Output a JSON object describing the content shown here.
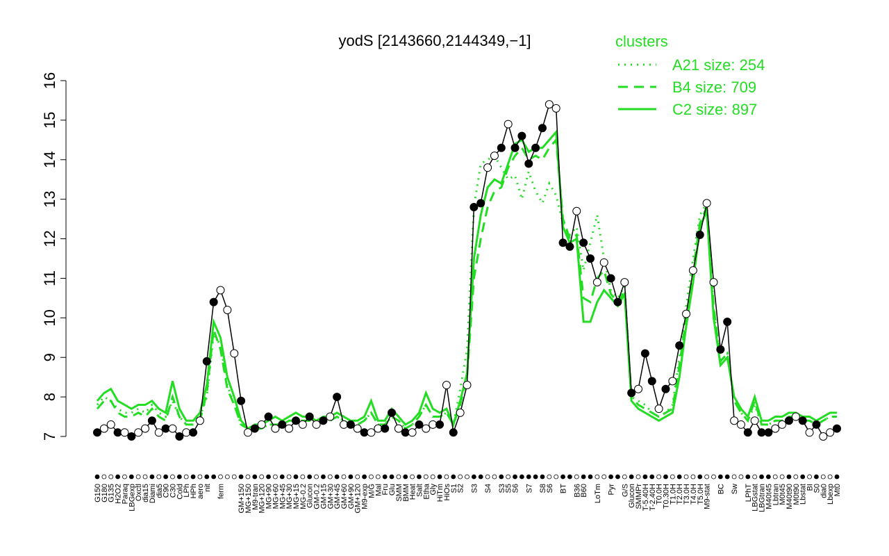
{
  "chart_data": {
    "type": "line",
    "title": "yodS [2143660,2144349,−1]",
    "legend_title": "clusters",
    "ylim": [
      7,
      16
    ],
    "yticks": [
      7,
      8,
      9,
      10,
      11,
      12,
      13,
      14,
      15,
      16
    ],
    "categories": [
      "G150",
      "G180",
      "G135",
      "H2O2",
      "Paraq",
      "LBGexp",
      "Oxctl",
      "dia15",
      "Diami",
      "dia5",
      "C90",
      "C30",
      "Cold",
      "LPh",
      "HPh",
      "aero",
      "nit",
      null,
      "ferm",
      null,
      null,
      "GM+150",
      "MG+150",
      "M9-tran",
      "MG+120",
      "MG+90",
      "MG+60",
      "MG+45",
      "MG+30",
      "MG+15",
      "MG-0.2",
      "Glucon",
      "GM-0.2",
      "GM+15",
      "GM+30",
      "GM+45",
      "GM+60",
      "GM+90",
      "GM+120",
      "M9-exp",
      "M/G",
      "Mal",
      "Fru",
      "Glu",
      "SMM",
      "BMM",
      "Heat",
      "Salt",
      "Etha",
      "Gly",
      "HiTm",
      "HiOs",
      "S1",
      "S2",
      null,
      "S3",
      null,
      "S4",
      null,
      "S3",
      "S5",
      "S6",
      null,
      "S7",
      null,
      "S8",
      "S6",
      null,
      "BT",
      null,
      "B36",
      "B60",
      null,
      "LoTm",
      null,
      "Pyr",
      null,
      "G/S",
      "Glucon",
      "SMMPr",
      "T-5.40H",
      "T-2.40H",
      "T0.0H",
      "T0.30H",
      "T1.0H",
      "T2.0H",
      "T3.0H",
      "T4.0H",
      "T5.0H",
      "M9-stat",
      null,
      "BC",
      null,
      "Sw",
      null,
      "LPhT",
      "LBGstat",
      "LBGtran",
      "M40t45",
      "Lbtran",
      "M0t45",
      "M40t90",
      "M0t90",
      "Lbstat",
      "BI",
      "S0",
      "dia0",
      "Lbexp",
      "Mt0"
    ],
    "values": [
      7.1,
      7.2,
      7.3,
      7.1,
      7.1,
      7.0,
      7.1,
      7.2,
      7.4,
      7.1,
      7.2,
      7.2,
      7.0,
      7.1,
      7.1,
      7.4,
      8.9,
      10.4,
      10.7,
      10.2,
      9.1,
      7.9,
      7.1,
      7.2,
      7.3,
      7.5,
      7.2,
      7.3,
      7.2,
      7.4,
      7.3,
      7.5,
      7.3,
      7.4,
      7.5,
      8.0,
      7.3,
      7.3,
      7.2,
      7.1,
      7.1,
      7.2,
      7.2,
      7.6,
      7.2,
      7.1,
      7.1,
      7.3,
      7.2,
      7.3,
      7.3,
      8.3,
      7.1,
      7.6,
      8.3,
      12.8,
      12.9,
      13.8,
      14.1,
      14.3,
      14.9,
      14.3,
      14.6,
      13.9,
      14.3,
      14.8,
      15.4,
      15.3,
      11.9,
      11.8,
      12.7,
      11.9,
      11.5,
      10.9,
      11.4,
      11.0,
      10.4,
      10.9,
      8.1,
      8.2,
      9.1,
      8.4,
      7.7,
      8.2,
      8.4,
      9.3,
      10.1,
      11.2,
      12.1,
      12.9,
      10.9,
      9.2,
      9.9,
      7.4,
      7.3,
      7.1,
      7.4,
      7.1,
      7.1,
      7.2,
      7.3,
      7.4,
      7.5,
      7.4,
      7.1,
      7.3,
      7.0,
      7.1,
      7.2
    ],
    "point_fills": [
      "#000",
      "#fff",
      "#fff",
      "#000",
      "#fff",
      "#000",
      "#fff",
      "#fff",
      "#000",
      "#fff",
      "#000",
      "#fff",
      "#000",
      "#fff",
      "#000",
      "#fff",
      "#000",
      "#000",
      "#fff",
      "#fff",
      "#fff",
      "#000",
      "#fff",
      "#000",
      "#fff",
      "#000",
      "#fff",
      "#000",
      "#fff",
      "#000",
      "#fff",
      "#000",
      "#fff",
      "#000",
      "#fff",
      "#000",
      "#fff",
      "#000",
      "#fff",
      "#000",
      "#fff",
      "#fff",
      "#000",
      "#000",
      "#fff",
      "#000",
      "#fff",
      "#000",
      "#fff",
      "#fff",
      "#000",
      "#fff",
      "#000",
      "#fff",
      "#fff",
      "#000",
      "#000",
      "#fff",
      "#fff",
      "#000",
      "#fff",
      "#000",
      "#000",
      "#000",
      "#000",
      "#000",
      "#fff",
      "#fff",
      "#000",
      "#000",
      "#fff",
      "#000",
      "#000",
      "#fff",
      "#fff",
      "#000",
      "#000",
      "#fff",
      "#000",
      "#fff",
      "#000",
      "#000",
      "#fff",
      "#000",
      "#fff",
      "#000",
      "#fff",
      "#fff",
      "#000",
      "#fff",
      "#fff",
      "#000",
      "#000",
      "#fff",
      "#fff",
      "#000",
      "#fff",
      "#000",
      "#000",
      "#fff",
      "#fff",
      "#000",
      "#fff",
      "#000",
      "#fff",
      "#000",
      "#fff",
      "#fff",
      "#000"
    ],
    "series": [
      {
        "name": "A21 size: 254",
        "color": "#22dd22",
        "dash": "dotted",
        "values": [
          7.8,
          8.0,
          7.9,
          7.7,
          7.6,
          7.6,
          7.7,
          7.6,
          7.8,
          7.6,
          7.5,
          7.9,
          7.5,
          7.3,
          7.3,
          7.5,
          8.0,
          9.6,
          9.3,
          8.3,
          7.8,
          7.3,
          7.2,
          7.2,
          7.2,
          7.3,
          7.3,
          7.3,
          7.4,
          7.4,
          7.4,
          7.4,
          7.3,
          7.4,
          7.4,
          7.5,
          7.4,
          7.3,
          7.3,
          7.4,
          7.6,
          7.3,
          7.3,
          7.5,
          7.4,
          7.2,
          7.3,
          7.5,
          7.8,
          7.5,
          7.5,
          7.6,
          7.3,
          8.2,
          9.2,
          12.8,
          13.9,
          14.0,
          14.1,
          13.8,
          13.5,
          13.6,
          13.0,
          13.7,
          13.2,
          12.9,
          13.4,
          13.1,
          12.4,
          12.1,
          12.3,
          11.2,
          11.9,
          12.6,
          11.5,
          10.7,
          10.5,
          10.8,
          8.0,
          7.9,
          7.8,
          7.6,
          7.5,
          7.6,
          7.8,
          9.0,
          10.3,
          11.5,
          12.6,
          12.9,
          10.2,
          8.9,
          9.1,
          7.9,
          7.6,
          7.4,
          7.8,
          7.3,
          7.3,
          7.4,
          7.4,
          7.5,
          7.5,
          7.4,
          7.4,
          7.3,
          7.4,
          7.5,
          7.5
        ]
      },
      {
        "name": "B4 size: 709",
        "color": "#22dd22",
        "dash": "dashed",
        "values": [
          7.7,
          7.9,
          7.9,
          7.6,
          7.5,
          7.5,
          7.6,
          7.5,
          7.7,
          7.5,
          7.4,
          8.0,
          7.5,
          7.3,
          7.3,
          7.4,
          8.1,
          9.7,
          9.2,
          8.2,
          7.8,
          7.3,
          7.2,
          7.2,
          7.2,
          7.3,
          7.3,
          7.3,
          7.4,
          7.4,
          7.4,
          7.4,
          7.3,
          7.4,
          7.4,
          7.5,
          7.4,
          7.3,
          7.3,
          7.4,
          7.6,
          7.3,
          7.3,
          7.5,
          7.4,
          7.2,
          7.3,
          7.5,
          7.8,
          7.5,
          7.5,
          7.6,
          7.3,
          7.8,
          8.5,
          11.0,
          12.0,
          12.8,
          13.2,
          13.3,
          13.8,
          14.1,
          14.3,
          14.0,
          14.1,
          14.0,
          14.3,
          14.5,
          12.5,
          12.0,
          12.1,
          10.5,
          10.4,
          11.0,
          11.2,
          10.6,
          10.4,
          10.7,
          8.0,
          7.8,
          7.7,
          7.6,
          7.5,
          7.6,
          7.7,
          8.8,
          10.0,
          11.2,
          12.4,
          12.8,
          10.3,
          8.9,
          9.1,
          7.9,
          7.6,
          7.4,
          7.9,
          7.3,
          7.3,
          7.4,
          7.4,
          7.5,
          7.5,
          7.4,
          7.4,
          7.3,
          7.4,
          7.5,
          7.5
        ]
      },
      {
        "name": "C2 size: 897",
        "color": "#22dd22",
        "dash": "solid",
        "values": [
          7.9,
          8.1,
          8.2,
          7.9,
          7.8,
          7.7,
          7.8,
          7.8,
          7.9,
          7.7,
          7.6,
          8.4,
          7.7,
          7.4,
          7.4,
          7.6,
          8.3,
          9.9,
          9.5,
          8.5,
          8.0,
          7.4,
          7.2,
          7.3,
          7.3,
          7.4,
          7.5,
          7.4,
          7.5,
          7.6,
          7.5,
          7.5,
          7.4,
          7.5,
          7.5,
          7.6,
          7.5,
          7.4,
          7.4,
          7.5,
          7.9,
          7.4,
          7.4,
          7.7,
          7.5,
          7.3,
          7.4,
          7.6,
          8.1,
          7.7,
          7.6,
          7.7,
          7.3,
          7.9,
          8.6,
          11.5,
          12.6,
          13.3,
          13.5,
          13.4,
          13.9,
          14.4,
          14.5,
          14.2,
          14.3,
          14.3,
          14.5,
          14.7,
          12.3,
          11.9,
          12.0,
          9.9,
          9.9,
          10.4,
          10.7,
          10.5,
          10.3,
          10.6,
          7.9,
          7.7,
          7.6,
          7.5,
          7.4,
          7.5,
          7.6,
          8.5,
          9.8,
          10.9,
          12.3,
          12.7,
          10.0,
          8.8,
          9.0,
          8.0,
          7.7,
          7.5,
          8.0,
          7.4,
          7.4,
          7.5,
          7.5,
          7.6,
          7.6,
          7.5,
          7.5,
          7.4,
          7.5,
          7.6,
          7.6
        ]
      }
    ]
  }
}
